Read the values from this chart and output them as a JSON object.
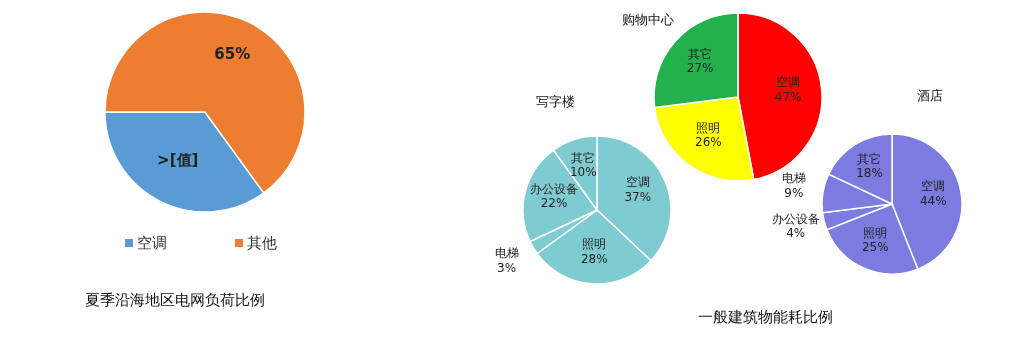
{
  "chart_data": [
    {
      "type": "pie",
      "title": "夏季沿海地区电网负荷比例",
      "categories": [
        "空调",
        "其他"
      ],
      "values": [
        35,
        65
      ],
      "colors": [
        "#5b9bd5",
        "#ed7d31"
      ],
      "value_labels": [
        ">[值]",
        "65%"
      ],
      "legend": "bottom"
    },
    {
      "type": "pie",
      "title": "购物中心",
      "categories": [
        "空调",
        "照明",
        "其它"
      ],
      "values": [
        47,
        26,
        27
      ],
      "colors": [
        "#ff0000",
        "#ffff00",
        "#22b14c"
      ],
      "value_labels": [
        "47%",
        "26%",
        "27%"
      ],
      "annotations": [
        "一般建筑物能耗比例"
      ]
    },
    {
      "type": "pie",
      "title": "写字楼",
      "categories": [
        "空调",
        "照明",
        "电梯",
        "办公设备",
        "其它"
      ],
      "values": [
        37,
        28,
        3,
        22,
        10
      ],
      "colors": [
        "#7ecbd1",
        "#7ecbd1",
        "#7ecbd1",
        "#7ecbd1",
        "#7ecbd1"
      ],
      "value_labels": [
        "37%",
        "28%",
        "3%",
        "22%",
        "10%"
      ]
    },
    {
      "type": "pie",
      "title": "酒店",
      "categories": [
        "空调",
        "照明",
        "办公设备",
        "电梯",
        "其它"
      ],
      "values": [
        44,
        25,
        4,
        9,
        18
      ],
      "colors": [
        "#7b7be0",
        "#7b7be0",
        "#7b7be0",
        "#7b7be0",
        "#7b7be0"
      ],
      "value_labels": [
        "44%",
        "25%",
        "4%",
        "9%",
        "18%"
      ]
    }
  ]
}
